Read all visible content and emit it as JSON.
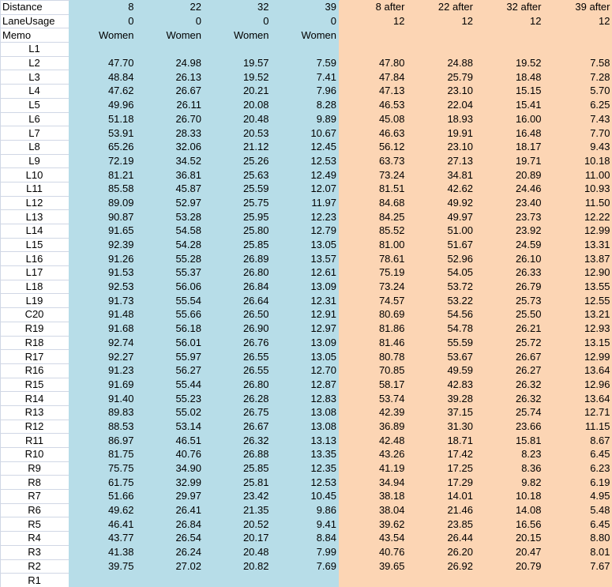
{
  "header_rows": [
    {
      "label": "Distance",
      "values": [
        "8",
        "22",
        "32",
        "39",
        "8 after",
        "22 after",
        "32 after",
        "39 after"
      ]
    },
    {
      "label": "LaneUsage",
      "values": [
        "0",
        "0",
        "0",
        "0",
        "12",
        "12",
        "12",
        "12"
      ]
    },
    {
      "label": "Memo",
      "values": [
        "Women",
        "Women",
        "Women",
        "Women",
        "",
        "",
        "",
        ""
      ]
    }
  ],
  "rows": [
    {
      "lane": "L1",
      "values": [
        "",
        "",
        "",
        "",
        "",
        "",
        "",
        ""
      ]
    },
    {
      "lane": "L2",
      "values": [
        "47.70",
        "24.98",
        "19.57",
        "7.59",
        "47.80",
        "24.88",
        "19.52",
        "7.58"
      ]
    },
    {
      "lane": "L3",
      "values": [
        "48.84",
        "26.13",
        "19.52",
        "7.41",
        "47.84",
        "25.79",
        "18.48",
        "7.28"
      ]
    },
    {
      "lane": "L4",
      "values": [
        "47.62",
        "26.67",
        "20.21",
        "7.96",
        "47.13",
        "23.10",
        "15.15",
        "5.70"
      ]
    },
    {
      "lane": "L5",
      "values": [
        "49.96",
        "26.11",
        "20.08",
        "8.28",
        "46.53",
        "22.04",
        "15.41",
        "6.25"
      ]
    },
    {
      "lane": "L6",
      "values": [
        "51.18",
        "26.70",
        "20.48",
        "9.89",
        "45.08",
        "18.93",
        "16.00",
        "7.43"
      ]
    },
    {
      "lane": "L7",
      "values": [
        "53.91",
        "28.33",
        "20.53",
        "10.67",
        "46.63",
        "19.91",
        "16.48",
        "7.70"
      ]
    },
    {
      "lane": "L8",
      "values": [
        "65.26",
        "32.06",
        "21.12",
        "12.45",
        "56.12",
        "23.10",
        "18.17",
        "9.43"
      ]
    },
    {
      "lane": "L9",
      "values": [
        "72.19",
        "34.52",
        "25.26",
        "12.53",
        "63.73",
        "27.13",
        "19.71",
        "10.18"
      ]
    },
    {
      "lane": "L10",
      "values": [
        "81.21",
        "36.81",
        "25.63",
        "12.49",
        "73.24",
        "34.81",
        "20.89",
        "11.00"
      ]
    },
    {
      "lane": "L11",
      "values": [
        "85.58",
        "45.87",
        "25.59",
        "12.07",
        "81.51",
        "42.62",
        "24.46",
        "10.93"
      ]
    },
    {
      "lane": "L12",
      "values": [
        "89.09",
        "52.97",
        "25.75",
        "11.97",
        "84.68",
        "49.92",
        "23.40",
        "11.50"
      ]
    },
    {
      "lane": "L13",
      "values": [
        "90.87",
        "53.28",
        "25.95",
        "12.23",
        "84.25",
        "49.97",
        "23.73",
        "12.22"
      ]
    },
    {
      "lane": "L14",
      "values": [
        "91.65",
        "54.58",
        "25.80",
        "12.79",
        "85.52",
        "51.00",
        "23.92",
        "12.99"
      ]
    },
    {
      "lane": "L15",
      "values": [
        "92.39",
        "54.28",
        "25.85",
        "13.05",
        "81.00",
        "51.67",
        "24.59",
        "13.31"
      ]
    },
    {
      "lane": "L16",
      "values": [
        "91.26",
        "55.28",
        "26.89",
        "13.57",
        "78.61",
        "52.96",
        "26.10",
        "13.87"
      ]
    },
    {
      "lane": "L17",
      "values": [
        "91.53",
        "55.37",
        "26.80",
        "12.61",
        "75.19",
        "54.05",
        "26.33",
        "12.90"
      ]
    },
    {
      "lane": "L18",
      "values": [
        "92.53",
        "56.06",
        "26.84",
        "13.09",
        "73.24",
        "53.72",
        "26.79",
        "13.55"
      ]
    },
    {
      "lane": "L19",
      "values": [
        "91.73",
        "55.54",
        "26.64",
        "12.31",
        "74.57",
        "53.22",
        "25.73",
        "12.55"
      ]
    },
    {
      "lane": "C20",
      "values": [
        "91.48",
        "55.66",
        "26.50",
        "12.91",
        "80.69",
        "54.56",
        "25.50",
        "13.21"
      ]
    },
    {
      "lane": "R19",
      "values": [
        "91.68",
        "56.18",
        "26.90",
        "12.97",
        "81.86",
        "54.78",
        "26.21",
        "12.93"
      ]
    },
    {
      "lane": "R18",
      "values": [
        "92.74",
        "56.01",
        "26.76",
        "13.09",
        "81.46",
        "55.59",
        "25.72",
        "13.15"
      ]
    },
    {
      "lane": "R17",
      "values": [
        "92.27",
        "55.97",
        "26.55",
        "13.05",
        "80.78",
        "53.67",
        "26.67",
        "12.99"
      ]
    },
    {
      "lane": "R16",
      "values": [
        "91.23",
        "56.27",
        "26.55",
        "12.70",
        "70.85",
        "49.59",
        "26.27",
        "13.64"
      ]
    },
    {
      "lane": "R15",
      "values": [
        "91.69",
        "55.44",
        "26.80",
        "12.87",
        "58.17",
        "42.83",
        "26.32",
        "12.96"
      ]
    },
    {
      "lane": "R14",
      "values": [
        "91.40",
        "55.23",
        "26.28",
        "12.83",
        "53.74",
        "39.28",
        "26.32",
        "13.64"
      ]
    },
    {
      "lane": "R13",
      "values": [
        "89.83",
        "55.02",
        "26.75",
        "13.08",
        "42.39",
        "37.15",
        "25.74",
        "12.71"
      ]
    },
    {
      "lane": "R12",
      "values": [
        "88.53",
        "53.14",
        "26.67",
        "13.08",
        "36.89",
        "31.30",
        "23.66",
        "11.15"
      ]
    },
    {
      "lane": "R11",
      "values": [
        "86.97",
        "46.51",
        "26.32",
        "13.13",
        "42.48",
        "18.71",
        "15.81",
        "8.67"
      ]
    },
    {
      "lane": "R10",
      "values": [
        "81.75",
        "40.76",
        "26.88",
        "13.35",
        "43.26",
        "17.42",
        "8.23",
        "6.45"
      ]
    },
    {
      "lane": "R9",
      "values": [
        "75.75",
        "34.90",
        "25.85",
        "12.35",
        "41.19",
        "17.25",
        "8.36",
        "6.23"
      ]
    },
    {
      "lane": "R8",
      "values": [
        "61.75",
        "32.99",
        "25.81",
        "12.53",
        "34.94",
        "17.29",
        "9.82",
        "6.19"
      ]
    },
    {
      "lane": "R7",
      "values": [
        "51.66",
        "29.97",
        "23.42",
        "10.45",
        "38.18",
        "14.01",
        "10.18",
        "4.95"
      ]
    },
    {
      "lane": "R6",
      "values": [
        "49.62",
        "26.41",
        "21.35",
        "9.86",
        "38.04",
        "21.46",
        "14.08",
        "5.48"
      ]
    },
    {
      "lane": "R5",
      "values": [
        "46.41",
        "26.84",
        "20.52",
        "9.41",
        "39.62",
        "23.85",
        "16.56",
        "6.45"
      ]
    },
    {
      "lane": "R4",
      "values": [
        "43.77",
        "26.54",
        "20.17",
        "8.84",
        "43.54",
        "26.44",
        "20.15",
        "8.80"
      ]
    },
    {
      "lane": "R3",
      "values": [
        "41.38",
        "26.24",
        "20.48",
        "7.99",
        "40.76",
        "26.20",
        "20.47",
        "8.01"
      ]
    },
    {
      "lane": "R2",
      "values": [
        "39.75",
        "27.02",
        "20.82",
        "7.69",
        "39.65",
        "26.92",
        "20.79",
        "7.67"
      ]
    },
    {
      "lane": "R1",
      "values": [
        "",
        "",
        "",
        "",
        "",
        "",
        "",
        ""
      ]
    }
  ],
  "colors": {
    "before_fill": "#b7dde8",
    "after_fill": "#fcd5b4",
    "gridline": "#d0d7e5"
  }
}
